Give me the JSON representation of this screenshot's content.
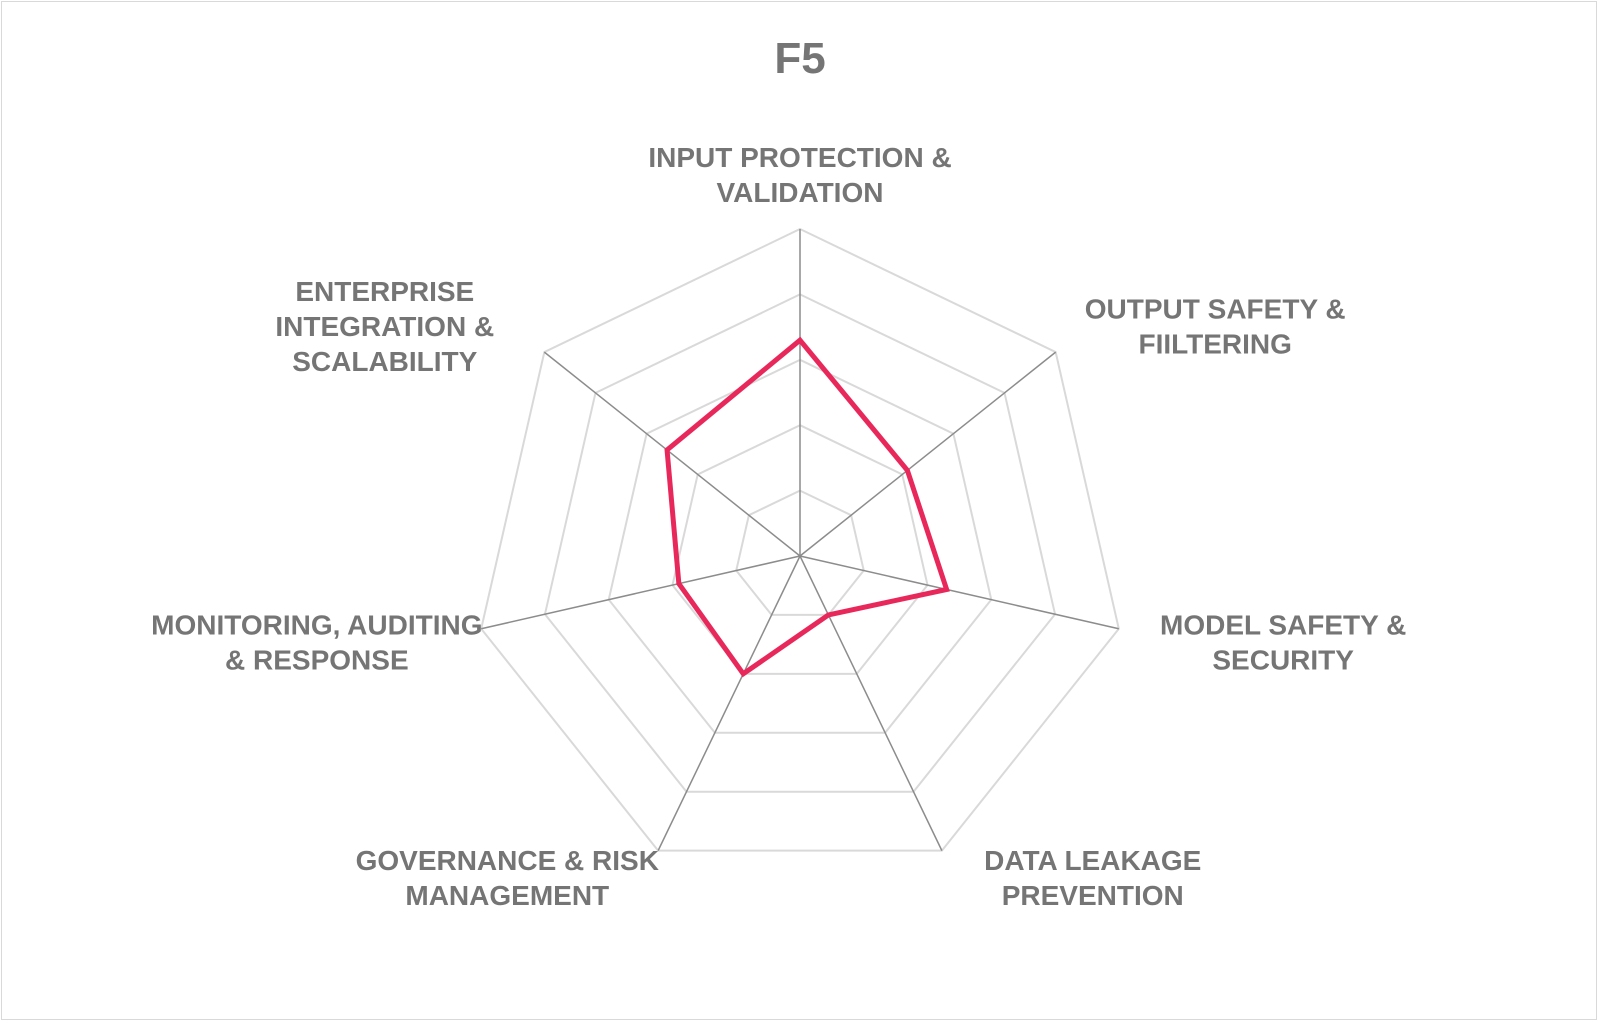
{
  "chart_data": {
    "type": "radar",
    "title": "F5",
    "categories": [
      [
        "INPUT PROTECTION &",
        "VALIDATION"
      ],
      [
        "OUTPUT SAFETY &",
        "FIILTERING"
      ],
      [
        "MODEL SAFETY &",
        "SECURITY"
      ],
      [
        "DATA LEAKAGE",
        "PREVENTION"
      ],
      [
        "GOVERNANCE & RISK",
        "MANAGEMENT"
      ],
      [
        "MONITORING, AUDITING",
        "& RESPONSE"
      ],
      [
        "ENTERPRISE",
        "INTEGRATION &",
        "SCALABILITY"
      ]
    ],
    "rlim": [
      0,
      5
    ],
    "grid_rings": 5,
    "grid": true,
    "legend": "none",
    "series": [
      {
        "values": [
          3.3,
          2.1,
          2.3,
          1.0,
          2.0,
          1.9,
          2.6
        ],
        "color": "#e8285a"
      }
    ],
    "colors": {
      "grid": "#d9d9d9",
      "spoke": "#8c8c8c",
      "text": "#757575",
      "border": "#d9d9d9"
    }
  }
}
